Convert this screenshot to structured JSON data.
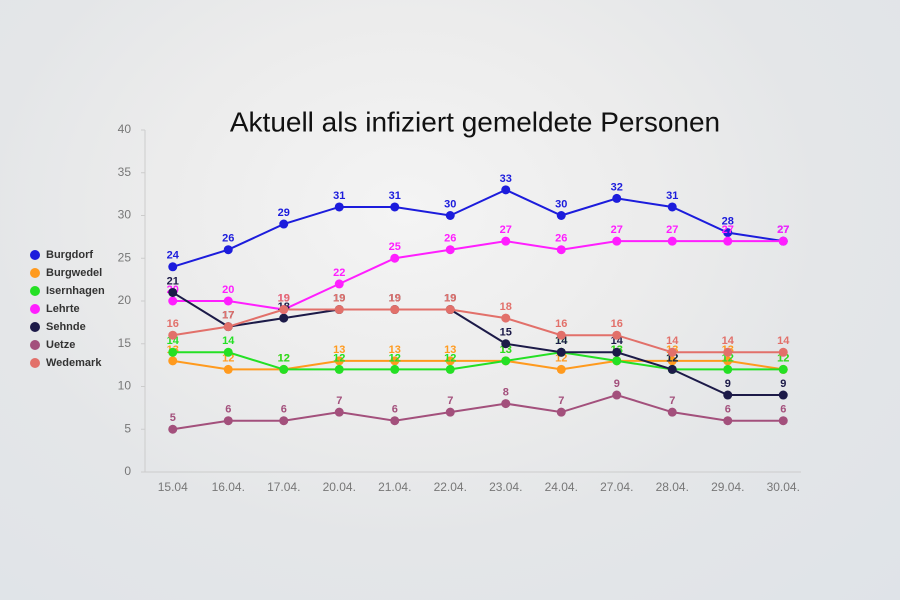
{
  "chart_data": {
    "type": "line",
    "title": "Aktuell als infiziert gemeldete Personen",
    "categories": [
      "15.04",
      "16.04.",
      "17.04.",
      "20.04.",
      "21.04.",
      "22.04.",
      "23.04.",
      "24.04.",
      "27.04.",
      "28.04.",
      "29.04.",
      "30.04."
    ],
    "series": [
      {
        "name": "Burgdorf",
        "color": "#1c1cdc",
        "values": [
          24,
          26,
          29,
          31,
          31,
          30,
          33,
          30,
          32,
          31,
          28,
          27
        ]
      },
      {
        "name": "Burgwedel",
        "color": "#ff9a1e",
        "values": [
          13,
          12,
          12,
          13,
          13,
          13,
          13,
          12,
          13,
          13,
          13,
          12
        ]
      },
      {
        "name": "Isernhagen",
        "color": "#24e024",
        "values": [
          14,
          14,
          12,
          12,
          12,
          12,
          13,
          14,
          13,
          12,
          12,
          12
        ]
      },
      {
        "name": "Lehrte",
        "color": "#ff1eff",
        "values": [
          20,
          20,
          19,
          22,
          25,
          26,
          27,
          26,
          27,
          27,
          27,
          27
        ]
      },
      {
        "name": "Sehnde",
        "color": "#1c1a48",
        "values": [
          21,
          17,
          18,
          19,
          19,
          19,
          15,
          14,
          14,
          12,
          9,
          9
        ]
      },
      {
        "name": "Uetze",
        "color": "#a3507c",
        "values": [
          5,
          6,
          6,
          7,
          6,
          7,
          8,
          7,
          9,
          7,
          6,
          6
        ]
      },
      {
        "name": "Wedemark",
        "color": "#e2706a",
        "values": [
          16,
          17,
          19,
          19,
          19,
          19,
          18,
          16,
          16,
          14,
          14,
          14
        ]
      }
    ],
    "ylim": [
      0,
      40
    ],
    "yticks": [
      0,
      5,
      10,
      15,
      20,
      25,
      30,
      35,
      40
    ],
    "grid": false,
    "legend": "left"
  }
}
